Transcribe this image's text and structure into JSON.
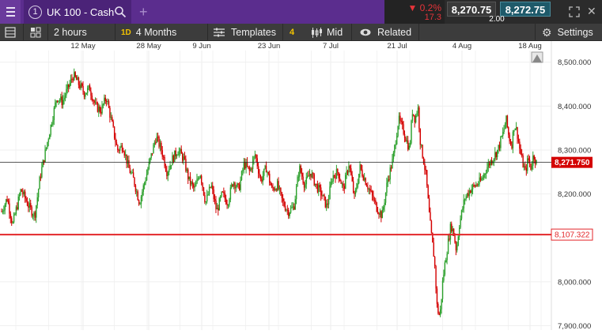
{
  "header": {
    "tab_number": "1",
    "instrument": "UK 100 - Cash",
    "change_pct": "▼ 0.2%",
    "change_abs": "17.3",
    "sell_price": "8,270.75",
    "buy_price": "8,272.75",
    "spread": "2.00"
  },
  "toolbar": {
    "interval": "2 hours",
    "period_badge": "1D",
    "period": "4 Months",
    "templates": "Templates",
    "indicator_count": "4",
    "price_type": "Mid",
    "related": "Related",
    "settings": "Settings"
  },
  "icons": {
    "menu": "hamburger-icon",
    "search": "search-icon",
    "add_tab": "plus-icon",
    "expand": "expand-icon",
    "close": "close-icon",
    "panel": "panel-icon",
    "grid": "grid-icon",
    "templates": "templates-icon",
    "candles": "candles-icon",
    "eye": "eye-icon",
    "settings": "gear-icon"
  },
  "colors": {
    "up": "#2ca02c",
    "down": "#d40000",
    "line_level": "#e3262a",
    "current_label": "#d40000",
    "header_bg": "#5b2d8e"
  },
  "chart_data": {
    "type": "candlestick",
    "x_tick_labels": [
      "12 May",
      "28 May",
      "9 Jun",
      "23 Jun",
      "7 Jul",
      "21 Jul",
      "4 Aug",
      "18 Aug"
    ],
    "y_tick_labels": [
      "8,500.000",
      "8,400.000",
      "8,300.000",
      "8,200.000",
      "8,000.000",
      "7,900.000"
    ],
    "ylim": [
      7890,
      8530
    ],
    "current_price": 8271.75,
    "current_price_label": "8,271.750",
    "horizontal_level": 8107.322,
    "horizontal_level_label": "8,107.322",
    "series_path": [
      [
        0,
        8160
      ],
      [
        0.01,
        8190
      ],
      [
        0.02,
        8130
      ],
      [
        0.035,
        8210
      ],
      [
        0.05,
        8170
      ],
      [
        0.06,
        8150
      ],
      [
        0.07,
        8240
      ],
      [
        0.08,
        8300
      ],
      [
        0.09,
        8360
      ],
      [
        0.1,
        8420
      ],
      [
        0.11,
        8410
      ],
      [
        0.12,
        8440
      ],
      [
        0.13,
        8470
      ],
      [
        0.14,
        8450
      ],
      [
        0.15,
        8430
      ],
      [
        0.16,
        8440
      ],
      [
        0.17,
        8400
      ],
      [
        0.18,
        8390
      ],
      [
        0.19,
        8420
      ],
      [
        0.2,
        8360
      ],
      [
        0.21,
        8300
      ],
      [
        0.22,
        8310
      ],
      [
        0.23,
        8260
      ],
      [
        0.24,
        8230
      ],
      [
        0.25,
        8180
      ],
      [
        0.26,
        8230
      ],
      [
        0.27,
        8280
      ],
      [
        0.28,
        8330
      ],
      [
        0.29,
        8300
      ],
      [
        0.3,
        8250
      ],
      [
        0.31,
        8280
      ],
      [
        0.32,
        8300
      ],
      [
        0.33,
        8280
      ],
      [
        0.34,
        8230
      ],
      [
        0.35,
        8210
      ],
      [
        0.36,
        8250
      ],
      [
        0.37,
        8180
      ],
      [
        0.38,
        8220
      ],
      [
        0.39,
        8160
      ],
      [
        0.4,
        8200
      ],
      [
        0.41,
        8180
      ],
      [
        0.42,
        8230
      ],
      [
        0.43,
        8210
      ],
      [
        0.44,
        8270
      ],
      [
        0.45,
        8250
      ],
      [
        0.46,
        8290
      ],
      [
        0.47,
        8230
      ],
      [
        0.48,
        8260
      ],
      [
        0.49,
        8210
      ],
      [
        0.5,
        8220
      ],
      [
        0.51,
        8180
      ],
      [
        0.52,
        8160
      ],
      [
        0.53,
        8170
      ],
      [
        0.54,
        8260
      ],
      [
        0.55,
        8220
      ],
      [
        0.56,
        8250
      ],
      [
        0.57,
        8220
      ],
      [
        0.58,
        8200
      ],
      [
        0.59,
        8170
      ],
      [
        0.6,
        8240
      ],
      [
        0.61,
        8250
      ],
      [
        0.62,
        8210
      ],
      [
        0.63,
        8270
      ],
      [
        0.64,
        8190
      ],
      [
        0.65,
        8260
      ],
      [
        0.66,
        8230
      ],
      [
        0.67,
        8200
      ],
      [
        0.68,
        8170
      ],
      [
        0.69,
        8150
      ],
      [
        0.7,
        8230
      ],
      [
        0.71,
        8280
      ],
      [
        0.72,
        8370
      ],
      [
        0.73,
        8340
      ],
      [
        0.74,
        8300
      ],
      [
        0.745,
        8390
      ],
      [
        0.75,
        8370
      ],
      [
        0.755,
        8400
      ],
      [
        0.76,
        8310
      ],
      [
        0.765,
        8280
      ],
      [
        0.77,
        8240
      ],
      [
        0.775,
        8160
      ],
      [
        0.78,
        8100
      ],
      [
        0.785,
        8050
      ],
      [
        0.79,
        7940
      ],
      [
        0.795,
        7920
      ],
      [
        0.8,
        8000
      ],
      [
        0.805,
        8050
      ],
      [
        0.81,
        8090
      ],
      [
        0.815,
        8130
      ],
      [
        0.82,
        8110
      ],
      [
        0.825,
        8070
      ],
      [
        0.83,
        8130
      ],
      [
        0.84,
        8190
      ],
      [
        0.85,
        8210
      ],
      [
        0.86,
        8220
      ],
      [
        0.87,
        8230
      ],
      [
        0.88,
        8260
      ],
      [
        0.89,
        8280
      ],
      [
        0.9,
        8300
      ],
      [
        0.91,
        8340
      ],
      [
        0.915,
        8370
      ],
      [
        0.92,
        8330
      ],
      [
        0.925,
        8310
      ],
      [
        0.93,
        8360
      ],
      [
        0.935,
        8340
      ],
      [
        0.94,
        8300
      ],
      [
        0.945,
        8270
      ],
      [
        0.95,
        8250
      ],
      [
        0.955,
        8280
      ],
      [
        0.96,
        8260
      ],
      [
        0.965,
        8290
      ],
      [
        0.97,
        8271
      ]
    ],
    "grid": true
  }
}
